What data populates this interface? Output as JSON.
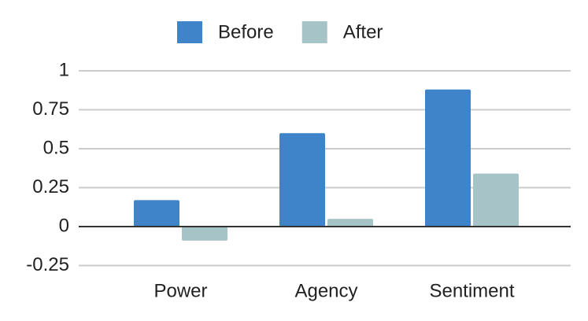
{
  "chart_data": {
    "type": "bar",
    "categories": [
      "Power",
      "Agency",
      "Sentiment"
    ],
    "series": [
      {
        "name": "Before",
        "color": "#3f84c8",
        "values": [
          0.17,
          0.6,
          0.88
        ]
      },
      {
        "name": "After",
        "color": "#a6c4c8",
        "values": [
          -0.09,
          0.05,
          0.34
        ]
      }
    ],
    "ylim": [
      -0.25,
      1
    ],
    "yticks": [
      -0.25,
      0,
      0.25,
      0.5,
      0.75,
      1
    ],
    "grid": true,
    "legend": "top"
  }
}
